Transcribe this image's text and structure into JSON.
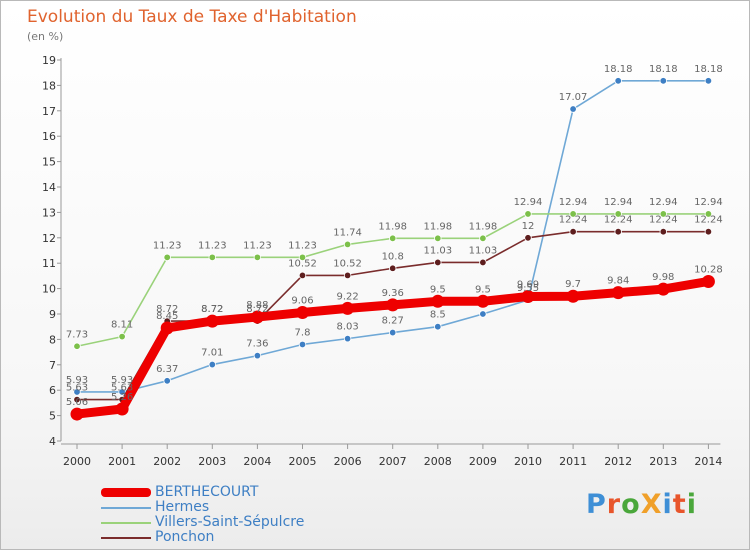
{
  "title": "Evolution du Taux de Taxe d'Habitation",
  "unit_label": "(en %)",
  "logo": {
    "text": "ProXiti",
    "colors": [
      "#3e8fd6",
      "#e8552b",
      "#4aa73b",
      "#f0a02a",
      "#3e8fd6",
      "#e8552b",
      "#4aa73b"
    ]
  },
  "chart_data": {
    "type": "line",
    "title": "Evolution du Taux de Taxe d'Habitation",
    "ylabel": "(en %)",
    "xlabel": "",
    "ylim": [
      4,
      19
    ],
    "y_ticks": [
      4,
      5,
      6,
      7,
      8,
      9,
      10,
      11,
      12,
      13,
      14,
      15,
      16,
      17,
      18,
      19
    ],
    "x": [
      "2000",
      "2001",
      "2002",
      "2003",
      "2004",
      "2005",
      "2006",
      "2007",
      "2008",
      "2009",
      "2010",
      "2011",
      "2012",
      "2013",
      "2014"
    ],
    "grid": false,
    "legend_position": "bottom-left",
    "series": [
      {
        "name": "BERTHECOURT",
        "color": "#ee0000",
        "thick": true,
        "values": [
          5.06,
          5.26,
          8.45,
          8.72,
          8.88,
          9.06,
          9.22,
          9.36,
          9.5,
          9.5,
          9.69,
          9.7,
          9.84,
          9.98,
          10.28
        ],
        "labels": [
          "5.06",
          "5.26",
          "8.45",
          "8.72",
          "8.88",
          "9.06",
          "9.22",
          "9.36",
          "9.5",
          "9.5",
          "9.69",
          "9.7",
          "9.84",
          "9.98",
          "10.28"
        ]
      },
      {
        "name": "Hermes",
        "color": "#6fa8d6",
        "marker": "#3e7fc4",
        "values": [
          5.93,
          5.93,
          6.37,
          7.01,
          7.36,
          7.8,
          8.03,
          8.27,
          8.5,
          9.0,
          9.55,
          17.07,
          18.18,
          18.18,
          18.18
        ],
        "labels": [
          "5.93",
          "5.93",
          "6.37",
          "7.01",
          "7.36",
          "7.8",
          "8.03",
          "8.27",
          "8.5",
          "",
          "9.55",
          "17.07",
          "18.18",
          "18.18",
          "18.18"
        ]
      },
      {
        "name": "Villers-Saint-Sépulcre",
        "color": "#9ad27a",
        "marker": "#7cc04a",
        "values": [
          7.73,
          8.11,
          11.23,
          11.23,
          11.23,
          11.23,
          11.74,
          11.98,
          11.98,
          11.98,
          12.94,
          12.94,
          12.94,
          12.94,
          12.94
        ],
        "labels": [
          "7.73",
          "8.11",
          "11.23",
          "11.23",
          "11.23",
          "11.23",
          "11.74",
          "11.98",
          "11.98",
          "11.98",
          "12.94",
          "12.94",
          "12.94",
          "12.94",
          "12.94"
        ]
      },
      {
        "name": "Ponchon",
        "color": "#7a2c2c",
        "marker": "#5e1e1e",
        "values": [
          5.63,
          5.63,
          8.72,
          8.72,
          8.72,
          10.52,
          10.52,
          10.8,
          11.03,
          11.03,
          12.0,
          12.24,
          12.24,
          12.24,
          12.24
        ],
        "labels": [
          "5.63",
          "5.63",
          "8.72",
          "8.72",
          "8.72",
          "10.52",
          "10.52",
          "10.8",
          "11.03",
          "11.03",
          "12",
          "12.24",
          "12.24",
          "12.24",
          "12.24"
        ]
      }
    ]
  }
}
